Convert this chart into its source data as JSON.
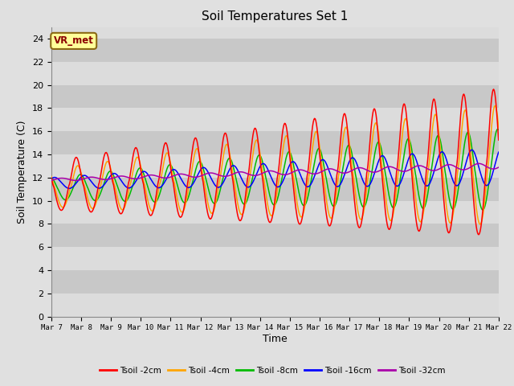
{
  "title": "Soil Temperatures Set 1",
  "xlabel": "Time",
  "ylabel": "Soil Temperature (C)",
  "ylim": [
    0,
    25
  ],
  "yticks": [
    0,
    2,
    4,
    6,
    8,
    10,
    12,
    14,
    16,
    18,
    20,
    22,
    24
  ],
  "annotation_text": "VR_met",
  "annotation_color": "#8B0000",
  "annotation_bg": "#FFFF99",
  "annotation_border": "#8B6914",
  "series_colors": [
    "#FF0000",
    "#FFA500",
    "#00BB00",
    "#0000FF",
    "#AA00AA"
  ],
  "series_labels": [
    "Tsoil -2cm",
    "Tsoil -4cm",
    "Tsoil -8cm",
    "Tsoil -16cm",
    "Tsoil -32cm"
  ],
  "fig_bg_color": "#E0E0E0",
  "band_colors": [
    "#DCDCDC",
    "#C8C8C8"
  ],
  "n_points": 720,
  "xtick_labels": [
    "Mar 7",
    "Mar 8",
    "Mar 9",
    "Mar 10",
    "Mar 11",
    "Mar 12",
    "Mar 13",
    "Mar 14",
    "Mar 15",
    "Mar 16",
    "Mar 17",
    "Mar 18",
    "Mar 19",
    "Mar 20",
    "Mar 21",
    "Mar 22"
  ],
  "xtick_positions": [
    0,
    1,
    2,
    3,
    4,
    5,
    6,
    7,
    8,
    9,
    10,
    11,
    12,
    13,
    14,
    15
  ]
}
